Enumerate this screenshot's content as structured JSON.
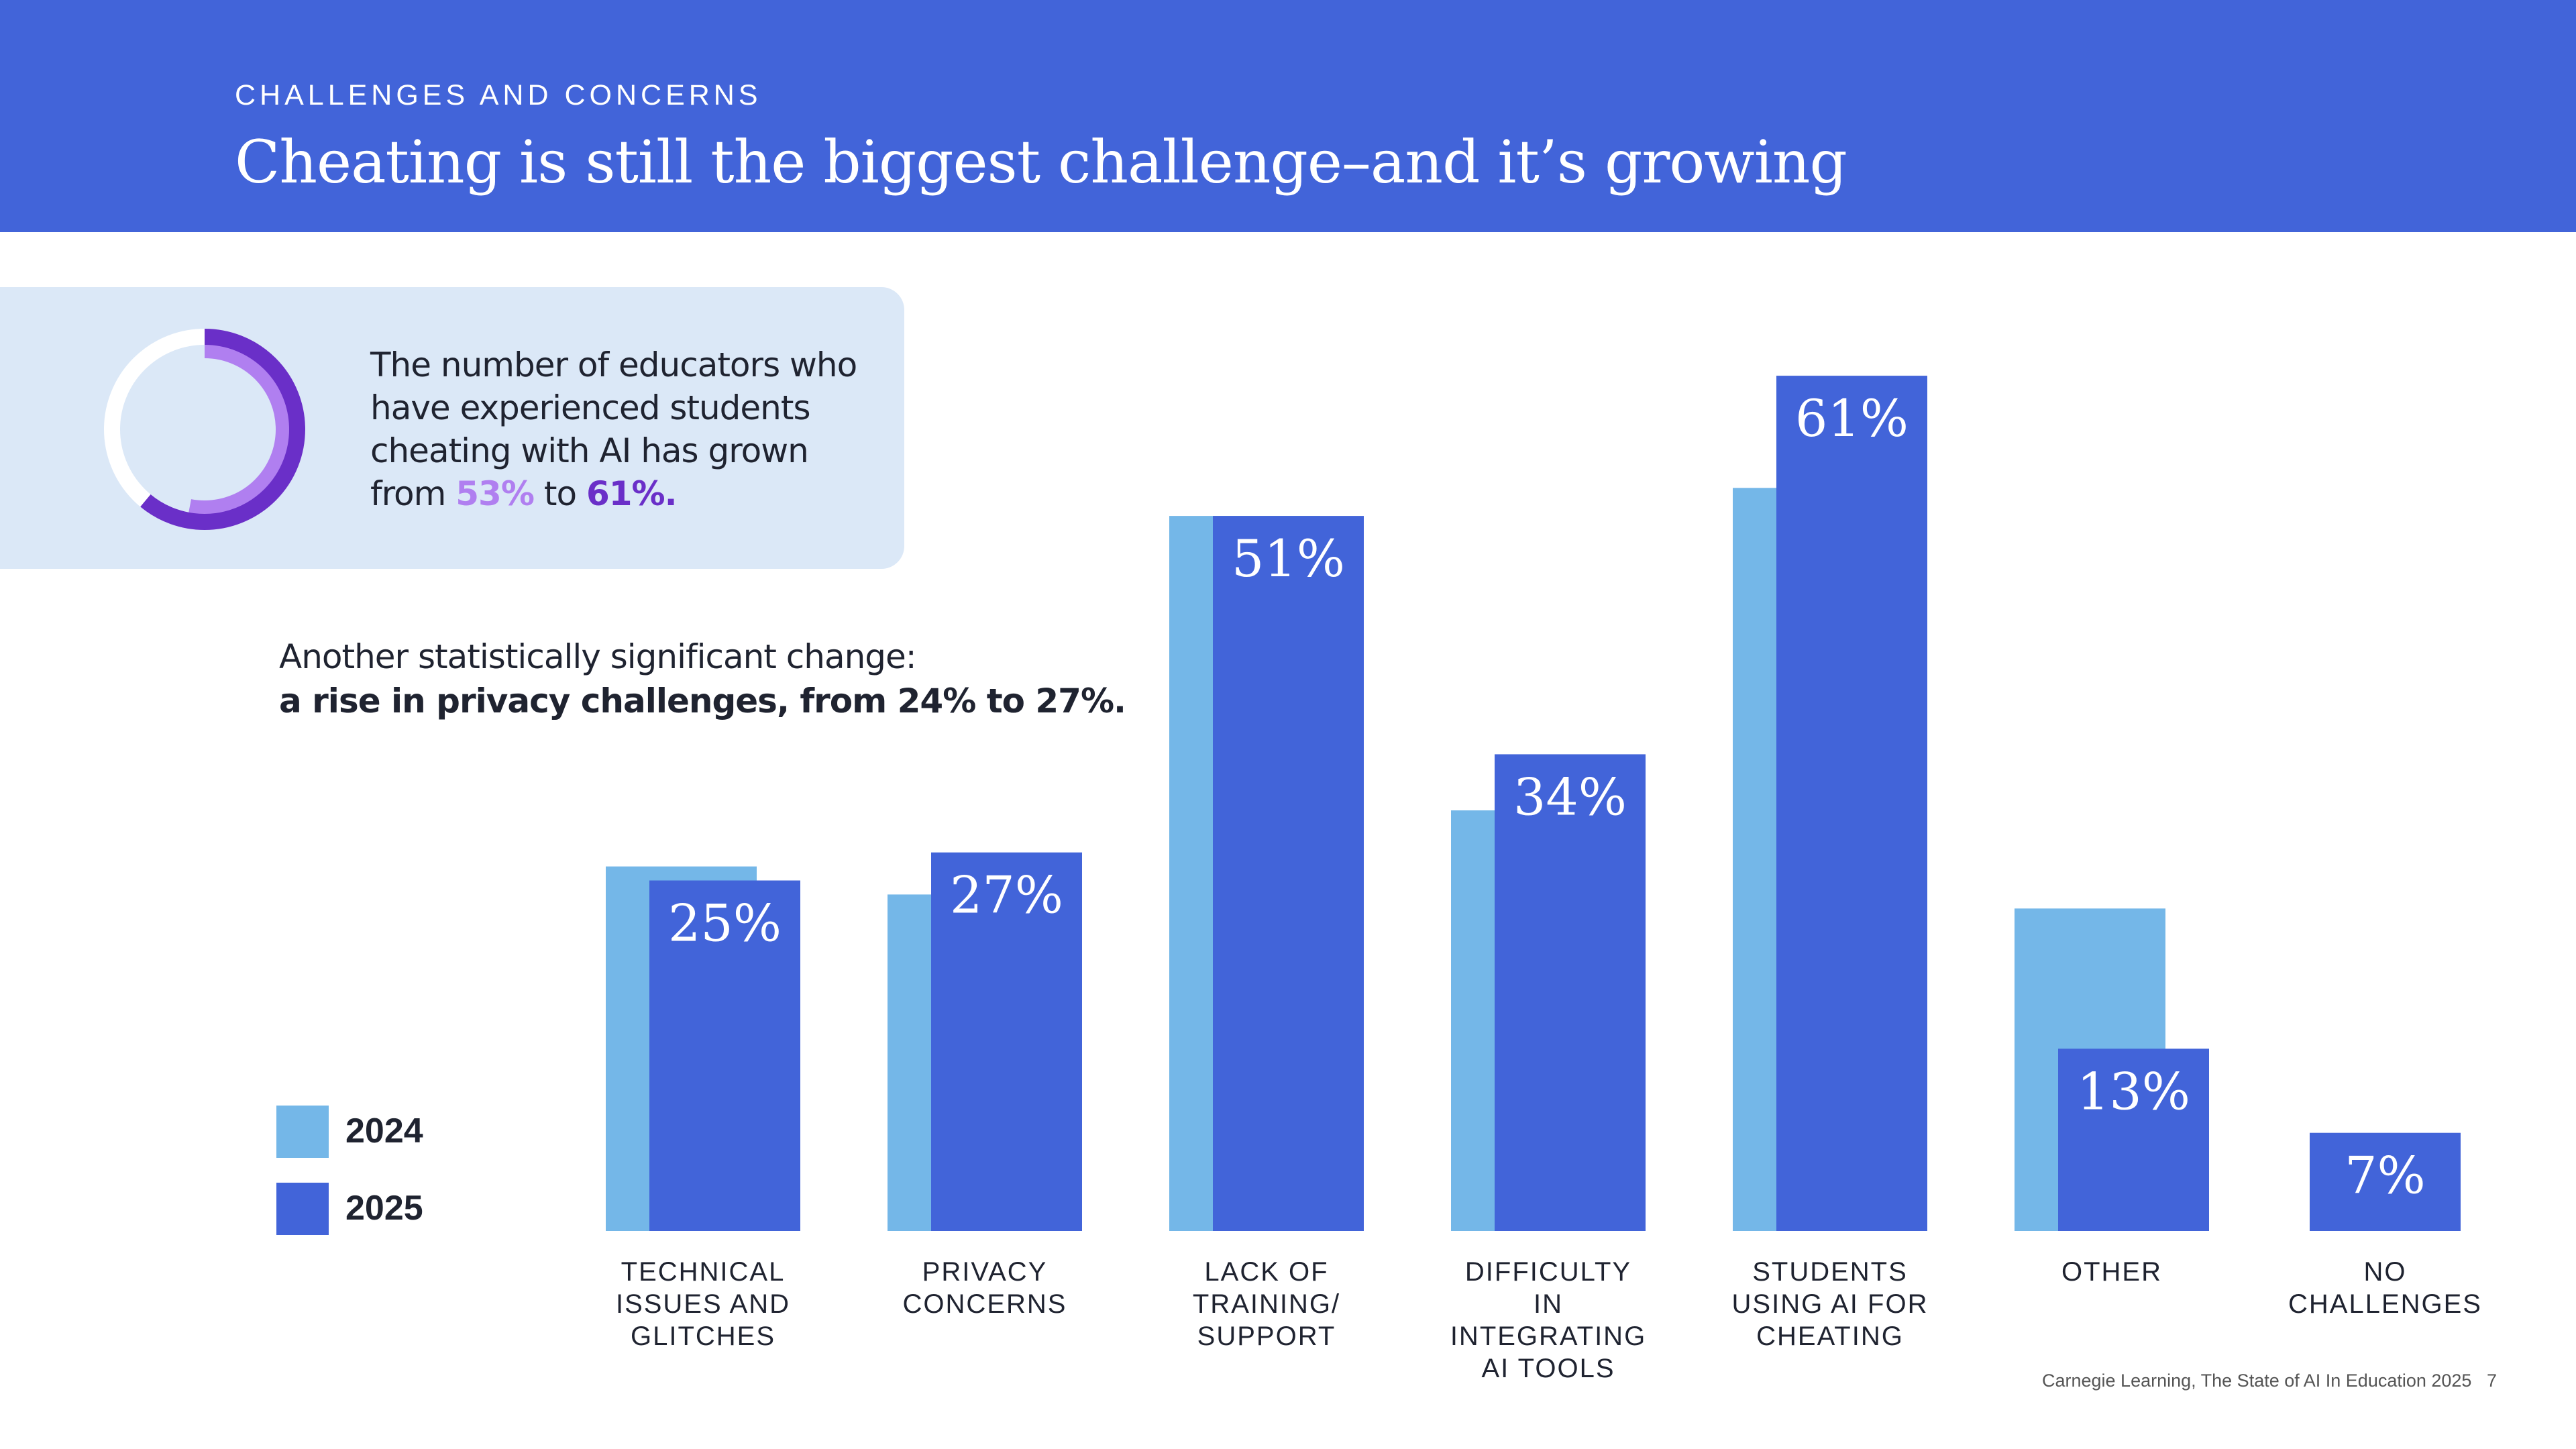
{
  "header": {
    "kicker": "CHALLENGES AND CONCERNS",
    "title": "Cheating is still the biggest challenge–and it’s growing"
  },
  "callout": {
    "text_before": "The number of educators who have experienced students cheating with AI has grown from ",
    "value_2024": "53%",
    "text_mid": " to ",
    "value_2025": "61%.",
    "donut": {
      "value_2024": 53,
      "value_2025": 61
    }
  },
  "note": {
    "line1": "Another statistically significant change:",
    "line2": "a rise in privacy challenges, from 24% to 27%."
  },
  "legend": {
    "label_2024": "2024",
    "label_2025": "2025"
  },
  "colors": {
    "header": "#4264d9",
    "series_2024": "#74b7e8",
    "series_2025": "#4264d9",
    "donut_2024": "#b07ff0",
    "donut_2025": "#6a2fc8"
  },
  "chart_data": {
    "type": "bar",
    "categories": [
      "TECHNICAL ISSUES AND GLITCHES",
      "PRIVACY CONCERNS",
      "LACK OF TRAINING/ SUPPORT",
      "DIFFICULTY IN INTEGRATING AI TOOLS",
      "STUDENTS USING AI FOR CHEATING",
      "OTHER",
      "NO CHALLENGES"
    ],
    "category_lines": [
      [
        "TECHNICAL",
        "ISSUES AND",
        "GLITCHES"
      ],
      [
        "PRIVACY",
        "CONCERNS"
      ],
      [
        "LACK OF",
        "TRAINING/",
        "SUPPORT"
      ],
      [
        "DIFFICULTY IN",
        "INTEGRATING",
        "AI TOOLS"
      ],
      [
        "STUDENTS",
        "USING AI FOR",
        "CHEATING"
      ],
      [
        "OTHER"
      ],
      [
        "NO",
        "CHALLENGES"
      ]
    ],
    "series": [
      {
        "name": "2024",
        "values": [
          26,
          24,
          51,
          30,
          53,
          23,
          null
        ]
      },
      {
        "name": "2025",
        "values": [
          25,
          27,
          51,
          34,
          61,
          13,
          7
        ]
      }
    ],
    "data_labels": [
      "25%",
      "27%",
      "51%",
      "34%",
      "61%",
      "13%",
      "7%"
    ],
    "ylim": [
      0,
      68
    ]
  },
  "footer": {
    "source": "Carnegie Learning, The State of AI In Education 2025",
    "page": "7"
  }
}
